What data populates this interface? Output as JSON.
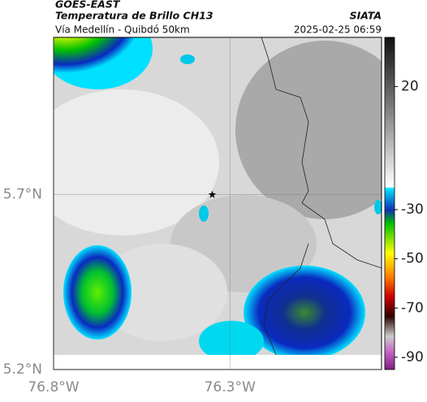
{
  "header": {
    "source": "GOES-EAST",
    "product": "Temperatura de Brillo CH13",
    "brand": "SIATA",
    "region": "Vía Medellín - Quibdó 50km",
    "timestamp": "2025-02-25 06:59"
  },
  "map": {
    "xlim": [
      -76.8,
      -75.87
    ],
    "ylim": [
      5.2,
      6.15
    ],
    "xticks": [
      {
        "value": -76.8,
        "label": "76.8°W"
      },
      {
        "value": -76.3,
        "label": "76.3°W"
      }
    ],
    "yticks": [
      {
        "value": 5.7,
        "label": "5.7°N"
      },
      {
        "value": 5.2,
        "label": "5.2°N"
      }
    ],
    "marker": {
      "lon": -76.35,
      "lat": 5.7
    }
  },
  "colorbar": {
    "lim": [
      40,
      -95
    ],
    "ticks": [
      20,
      -30,
      -50,
      -70,
      -90
    ]
  }
}
